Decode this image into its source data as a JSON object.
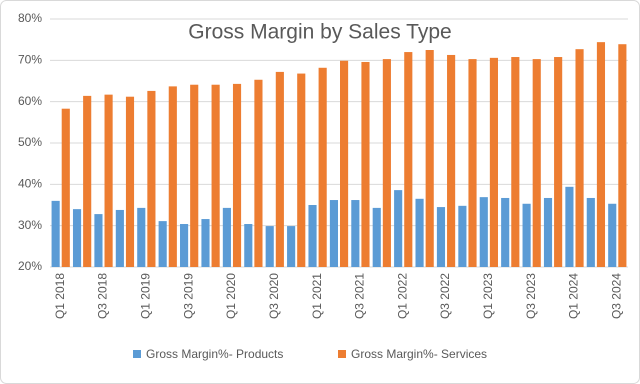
{
  "chart_data": {
    "type": "bar",
    "title": "Gross Margin by Sales Type",
    "categories": [
      "Q1 2018",
      null,
      "Q3 2018",
      null,
      "Q1 2019",
      null,
      "Q3 2019",
      null,
      "Q1 2020",
      null,
      "Q3 2020",
      null,
      "Q1 2021",
      null,
      "Q3 2021",
      null,
      "Q1 2022",
      null,
      "Q3 2022",
      null,
      "Q1 2023",
      null,
      "Q3 2023",
      null,
      "Q1 2024",
      null,
      "Q3 2024"
    ],
    "series": [
      {
        "name": "Gross Margin%- Products",
        "color": "#5b9bd5",
        "values": [
          36.0,
          34.0,
          32.8,
          33.8,
          34.3,
          31.1,
          30.4,
          31.6,
          34.3,
          30.4,
          29.9,
          29.9,
          35.0,
          36.2,
          36.2,
          34.3,
          38.6,
          36.5,
          34.5,
          34.8,
          36.9,
          36.7,
          35.3,
          36.7,
          39.4,
          36.7,
          35.3
        ]
      },
      {
        "name": "Gross Margin%- Services",
        "color": "#ed7d31",
        "values": [
          58.3,
          61.4,
          61.7,
          61.2,
          62.6,
          63.7,
          64.1,
          64.1,
          64.3,
          65.3,
          67.2,
          66.8,
          68.2,
          69.9,
          69.6,
          70.3,
          72.0,
          72.5,
          71.3,
          70.3,
          70.6,
          70.8,
          70.3,
          70.8,
          72.7,
          74.4,
          73.9
        ]
      }
    ],
    "ylim": [
      20,
      80
    ],
    "yticks": [
      {
        "value": 20,
        "label": "20%"
      },
      {
        "value": 30,
        "label": "30%"
      },
      {
        "value": 40,
        "label": "40%"
      },
      {
        "value": 50,
        "label": "50%"
      },
      {
        "value": 60,
        "label": "60%"
      },
      {
        "value": 70,
        "label": "70%"
      },
      {
        "value": 80,
        "label": "80%"
      }
    ],
    "grid": true
  }
}
